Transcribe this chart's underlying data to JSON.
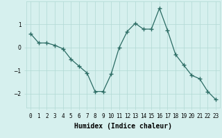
{
  "x": [
    0,
    1,
    2,
    3,
    4,
    5,
    6,
    7,
    8,
    9,
    10,
    11,
    12,
    13,
    14,
    15,
    16,
    17,
    18,
    19,
    20,
    21,
    22,
    23
  ],
  "y": [
    0.6,
    0.2,
    0.2,
    0.1,
    -0.05,
    -0.5,
    -0.8,
    -1.1,
    -1.9,
    -1.9,
    -1.15,
    0.0,
    0.7,
    1.05,
    0.8,
    0.8,
    1.7,
    0.75,
    -0.3,
    -0.75,
    -1.2,
    -1.35,
    -1.9,
    -2.25
  ],
  "title": "",
  "xlabel": "Humidex (Indice chaleur)",
  "ylabel": "",
  "xlim": [
    -0.5,
    23.5
  ],
  "ylim": [
    -2.6,
    2.0
  ],
  "yticks": [
    -2,
    -1,
    0,
    1
  ],
  "xtick_labels": [
    "0",
    "1",
    "2",
    "3",
    "4",
    "5",
    "6",
    "7",
    "8",
    "9",
    "10",
    "11",
    "12",
    "13",
    "14",
    "15",
    "16",
    "17",
    "18",
    "19",
    "20",
    "21",
    "22",
    "23"
  ],
  "line_color": "#2a6b63",
  "marker": "+",
  "marker_size": 4,
  "marker_linewidth": 1.0,
  "bg_color": "#d6f0ee",
  "grid_color": "#b0d8d4",
  "label_fontsize": 7,
  "tick_fontsize": 5.5
}
